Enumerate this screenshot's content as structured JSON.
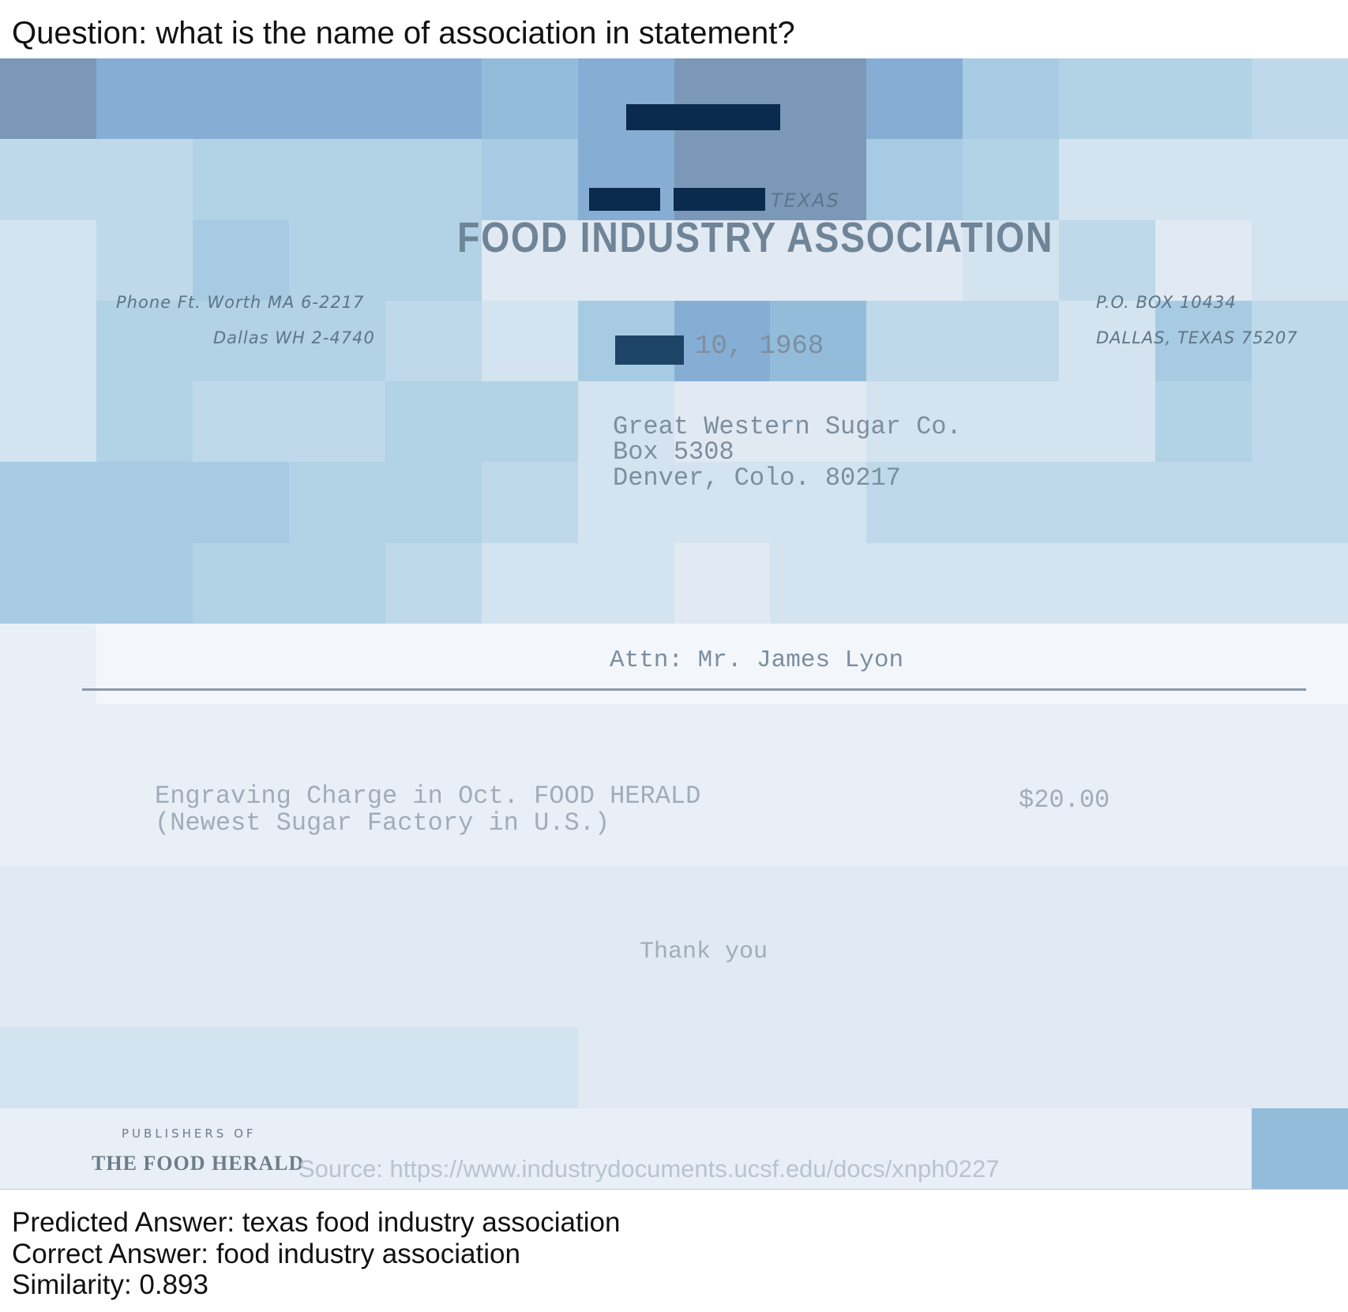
{
  "question": "Question: what is the name of association in statement?",
  "letterhead": {
    "state": "TEXAS",
    "association_name": "FOOD INDUSTRY ASSOCIATION",
    "phone_line_1": "Phone  Ft.  Worth  MA 6-2217",
    "phone_line_2": "Dallas  WH 2-4740",
    "po_box": "P.O.  BOX  10434",
    "city_state_zip": "DALLAS,  TEXAS  75207"
  },
  "date_visible": "10, 1968",
  "recipient": {
    "name": "Great Western Sugar Co.",
    "box": "Box 5308",
    "city": "Denver, Colo.  80217",
    "attn": "Attn:  Mr. James Lyon"
  },
  "line_item": {
    "description_1": "Engraving Charge in Oct. FOOD HERALD",
    "description_2": "(Newest Sugar Factory in U.S.)",
    "amount": "$20.00"
  },
  "closing": "Thank you",
  "footer": {
    "publishers_of": "PUBLISHERS OF",
    "publication": "THE FOOD HERALD"
  },
  "source": "Source: https://www.industrydocuments.ucsf.edu/docs/xnph0227",
  "results": {
    "predicted": "Predicted Answer: texas food industry association",
    "correct": "Correct Answer: food industry association",
    "similarity": "Similarity: 0.893"
  },
  "colors": {
    "redaction": "#0a2a4e",
    "heatmap_dark": "#7f9fbf",
    "heatmap_light": "#dfe8f2"
  }
}
